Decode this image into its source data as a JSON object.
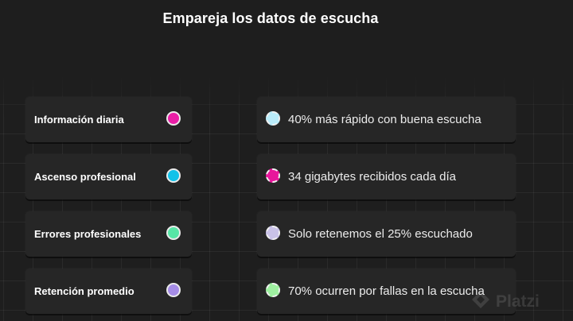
{
  "header": {
    "title": "Empareja los datos de escucha"
  },
  "left_items": [
    {
      "label": "Información diaria",
      "dot_color": "#e91ea6"
    },
    {
      "label": "Ascenso profesional",
      "dot_color": "#12c2e9"
    },
    {
      "label": "Errores profesionales",
      "dot_color": "#57e6a6"
    },
    {
      "label": "Retención promedio",
      "dot_color": "#a58ce6"
    }
  ],
  "right_items": [
    {
      "label": "40% más rápido con buena escucha",
      "dot_color": "#b9ecfa"
    },
    {
      "label": "34 gigabytes recibidos cada día",
      "dot_color": "#e8179b"
    },
    {
      "label": "Solo retenemos el 25% escuchado",
      "dot_color": "#c9c2e8"
    },
    {
      "label": "70% ocurren por fallas en la escucha",
      "dot_color": "#9ef0a0"
    }
  ],
  "watermark": {
    "text": "Platzi",
    "icon": "platzi-logo-icon"
  }
}
